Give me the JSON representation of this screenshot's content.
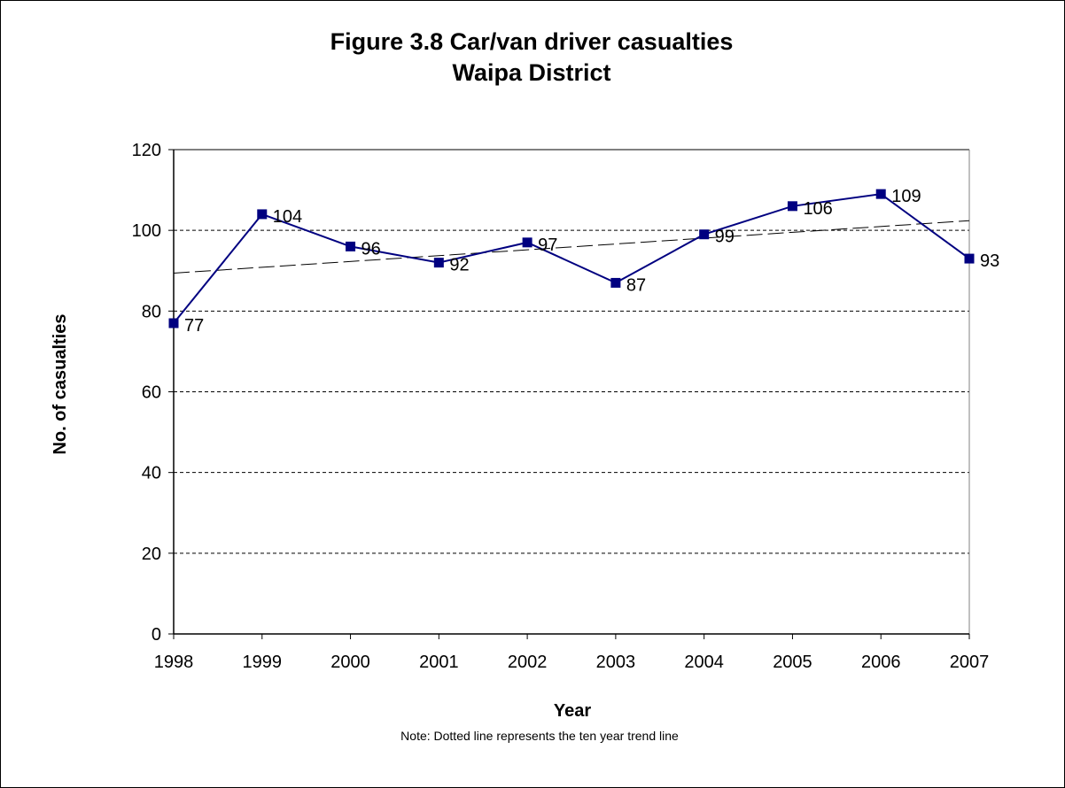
{
  "chart_data": {
    "type": "line",
    "title_line1": "Figure 3.8 Car/van driver casualties",
    "title_line2": "Waipa District",
    "xlabel": "Year",
    "ylabel": "No. of casualties",
    "note": "Note: Dotted line represents the ten year trend line",
    "categories": [
      "1998",
      "1999",
      "2000",
      "2001",
      "2002",
      "2003",
      "2004",
      "2005",
      "2006",
      "2007"
    ],
    "series": [
      {
        "values": [
          77,
          104,
          96,
          92,
          97,
          87,
          99,
          106,
          109,
          93
        ]
      }
    ],
    "trend": {
      "start": 89.4,
      "end": 102.4
    },
    "ylim": [
      0,
      120
    ],
    "yticks": [
      0,
      20,
      40,
      60,
      80,
      100,
      120
    ],
    "grid": true,
    "colors": {
      "series": "#000080",
      "trend": "#000000",
      "grid": "#000000"
    }
  }
}
